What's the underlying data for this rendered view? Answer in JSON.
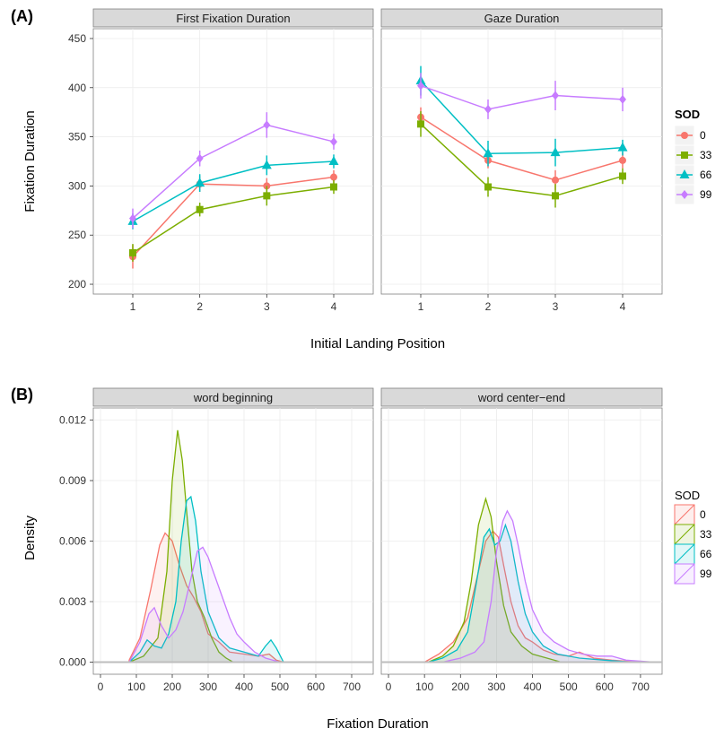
{
  "chart_data": [
    {
      "type": "line",
      "panel_tag": "(A)",
      "facets": [
        "First Fixation Duration",
        "Gaze Duration"
      ],
      "xlabel": "Initial Landing Position",
      "ylabel": "Fixation Duration",
      "x": [
        1,
        2,
        3,
        4
      ],
      "x_ticks": [
        "1",
        "2",
        "3",
        "4"
      ],
      "ylim": [
        190,
        460
      ],
      "y_ticks": [
        200,
        250,
        300,
        350,
        400,
        450
      ],
      "legend_title": "SOD",
      "legend_position": "right",
      "series": [
        {
          "name": "0",
          "color": "#F8766D",
          "marker": "circle",
          "values": {
            "First Fixation Duration": [
              228,
              302,
              300,
              309
            ],
            "Gaze Duration": [
              370,
              326,
              306,
              326
            ]
          },
          "error": {
            "First Fixation Duration": [
              12,
              8,
              8,
              7
            ],
            "Gaze Duration": [
              10,
              8,
              10,
              8
            ]
          }
        },
        {
          "name": "33",
          "color": "#7CAE00",
          "marker": "square",
          "values": {
            "First Fixation Duration": [
              232,
              276,
              290,
              299
            ],
            "Gaze Duration": [
              363,
              299,
              290,
              310
            ]
          },
          "error": {
            "First Fixation Duration": [
              9,
              7,
              10,
              7
            ],
            "Gaze Duration": [
              13,
              10,
              12,
              8
            ]
          }
        },
        {
          "name": "66",
          "color": "#00BFC4",
          "marker": "triangle",
          "values": {
            "First Fixation Duration": [
              264,
              303,
              321,
              325
            ],
            "Gaze Duration": [
              407,
              333,
              334,
              339
            ]
          },
          "error": {
            "First Fixation Duration": [
              8,
              9,
              10,
              7
            ],
            "Gaze Duration": [
              15,
              13,
              14,
              8
            ]
          }
        },
        {
          "name": "99",
          "color": "#C77CFF",
          "marker": "diamond",
          "values": {
            "First Fixation Duration": [
              267,
              328,
              362,
              345
            ],
            "Gaze Duration": [
              402,
              378,
              392,
              388
            ]
          },
          "error": {
            "First Fixation Duration": [
              10,
              8,
              13,
              8
            ],
            "Gaze Duration": [
              13,
              10,
              15,
              12
            ]
          }
        }
      ]
    },
    {
      "type": "area",
      "panel_tag": "(B)",
      "facets": [
        "word beginning",
        "word center−end"
      ],
      "xlabel": "Fixation Duration",
      "ylabel": "Density",
      "xlim": [
        -20,
        760
      ],
      "x_ticks": [
        0,
        100,
        200,
        300,
        400,
        500,
        600,
        700
      ],
      "ylim": [
        -0.0006,
        0.0126
      ],
      "y_ticks": [
        "0.000",
        "0.003",
        "0.006",
        "0.009",
        "0.012"
      ],
      "legend_title": "SOD",
      "legend_position": "right",
      "series": [
        {
          "name": "0",
          "color": "#F8766D",
          "fill": "#F8766D",
          "curves": {
            "word beginning": [
              [
                80,
                0.0001
              ],
              [
                110,
                0.0012
              ],
              [
                140,
                0.0036
              ],
              [
                165,
                0.0058
              ],
              [
                180,
                0.0064
              ],
              [
                200,
                0.006
              ],
              [
                220,
                0.0048
              ],
              [
                240,
                0.0038
              ],
              [
                260,
                0.0032
              ],
              [
                280,
                0.0025
              ],
              [
                300,
                0.0014
              ],
              [
                330,
                0.001
              ],
              [
                360,
                0.0005
              ],
              [
                400,
                0.0004
              ],
              [
                440,
                0.0003
              ],
              [
                470,
                0.0004
              ],
              [
                490,
                0.0001
              ],
              [
                510,
                0
              ]
            ],
            "word center−end": [
              [
                100,
                0
              ],
              [
                140,
                0.0004
              ],
              [
                180,
                0.001
              ],
              [
                220,
                0.0022
              ],
              [
                250,
                0.0045
              ],
              [
                270,
                0.006
              ],
              [
                290,
                0.0065
              ],
              [
                305,
                0.0062
              ],
              [
                320,
                0.0048
              ],
              [
                340,
                0.003
              ],
              [
                360,
                0.0018
              ],
              [
                380,
                0.0012
              ],
              [
                400,
                0.001
              ],
              [
                430,
                0.0006
              ],
              [
                460,
                0.0004
              ],
              [
                500,
                0.0003
              ],
              [
                530,
                0.0005
              ],
              [
                570,
                0.0002
              ],
              [
                620,
                0.0001
              ],
              [
                700,
                0
              ]
            ]
          }
        },
        {
          "name": "33",
          "color": "#7CAE00",
          "fill": "#7CAE00",
          "curves": {
            "word beginning": [
              [
                80,
                0
              ],
              [
                120,
                0.0003
              ],
              [
                160,
                0.0012
              ],
              [
                185,
                0.0045
              ],
              [
                200,
                0.009
              ],
              [
                215,
                0.0115
              ],
              [
                228,
                0.01
              ],
              [
                240,
                0.0075
              ],
              [
                255,
                0.0045
              ],
              [
                270,
                0.003
              ],
              [
                290,
                0.0022
              ],
              [
                310,
                0.0012
              ],
              [
                330,
                0.0005
              ],
              [
                350,
                0.0002
              ],
              [
                370,
                0
              ]
            ],
            "word center−end": [
              [
                110,
                0
              ],
              [
                150,
                0.0003
              ],
              [
                180,
                0.0008
              ],
              [
                210,
                0.002
              ],
              [
                230,
                0.004
              ],
              [
                250,
                0.0068
              ],
              [
                270,
                0.0081
              ],
              [
                285,
                0.0072
              ],
              [
                300,
                0.005
              ],
              [
                320,
                0.0028
              ],
              [
                340,
                0.0015
              ],
              [
                370,
                0.0008
              ],
              [
                400,
                0.0004
              ],
              [
                440,
                0.0002
              ],
              [
                480,
                0
              ]
            ]
          }
        },
        {
          "name": "66",
          "color": "#00BFC4",
          "fill": "#00BFC4",
          "curves": {
            "word beginning": [
              [
                80,
                0
              ],
              [
                110,
                0.0005
              ],
              [
                130,
                0.0011
              ],
              [
                150,
                0.0008
              ],
              [
                170,
                0.0007
              ],
              [
                190,
                0.0014
              ],
              [
                210,
                0.003
              ],
              [
                225,
                0.006
              ],
              [
                240,
                0.008
              ],
              [
                252,
                0.0082
              ],
              [
                265,
                0.007
              ],
              [
                280,
                0.0045
              ],
              [
                300,
                0.0025
              ],
              [
                330,
                0.0012
              ],
              [
                360,
                0.0007
              ],
              [
                400,
                0.0005
              ],
              [
                440,
                0.0003
              ],
              [
                460,
                0.0008
              ],
              [
                475,
                0.0011
              ],
              [
                490,
                0.0007
              ],
              [
                510,
                0
              ]
            ],
            "word center−end": [
              [
                110,
                0
              ],
              [
                150,
                0.0002
              ],
              [
                190,
                0.0006
              ],
              [
                220,
                0.0015
              ],
              [
                245,
                0.004
              ],
              [
                265,
                0.0062
              ],
              [
                280,
                0.0066
              ],
              [
                295,
                0.0058
              ],
              [
                310,
                0.006
              ],
              [
                325,
                0.0068
              ],
              [
                340,
                0.006
              ],
              [
                360,
                0.004
              ],
              [
                380,
                0.0024
              ],
              [
                400,
                0.0015
              ],
              [
                430,
                0.0008
              ],
              [
                470,
                0.0004
              ],
              [
                530,
                0.0002
              ],
              [
                600,
                0.0001
              ],
              [
                680,
                0
              ]
            ]
          }
        },
        {
          "name": "99",
          "color": "#C77CFF",
          "fill": "#C77CFF",
          "curves": {
            "word beginning": [
              [
                80,
                0
              ],
              [
                110,
                0.001
              ],
              [
                135,
                0.0024
              ],
              [
                150,
                0.0027
              ],
              [
                170,
                0.0018
              ],
              [
                190,
                0.0012
              ],
              [
                210,
                0.0016
              ],
              [
                230,
                0.0025
              ],
              [
                250,
                0.004
              ],
              [
                270,
                0.0055
              ],
              [
                285,
                0.0057
              ],
              [
                300,
                0.0052
              ],
              [
                320,
                0.0042
              ],
              [
                340,
                0.0032
              ],
              [
                360,
                0.0022
              ],
              [
                380,
                0.0014
              ],
              [
                400,
                0.001
              ],
              [
                430,
                0.0005
              ],
              [
                460,
                0.0002
              ],
              [
                500,
                0
              ]
            ],
            "word center−end": [
              [
                150,
                0
              ],
              [
                200,
                0.0002
              ],
              [
                240,
                0.0005
              ],
              [
                265,
                0.001
              ],
              [
                285,
                0.003
              ],
              [
                300,
                0.0055
              ],
              [
                318,
                0.007
              ],
              [
                330,
                0.0075
              ],
              [
                345,
                0.007
              ],
              [
                360,
                0.0058
              ],
              [
                380,
                0.004
              ],
              [
                400,
                0.0026
              ],
              [
                430,
                0.0015
              ],
              [
                460,
                0.001
              ],
              [
                500,
                0.0006
              ],
              [
                540,
                0.0004
              ],
              [
                580,
                0.0003
              ],
              [
                620,
                0.0003
              ],
              [
                660,
                0.0001
              ],
              [
                740,
                0
              ]
            ]
          }
        }
      ]
    }
  ]
}
